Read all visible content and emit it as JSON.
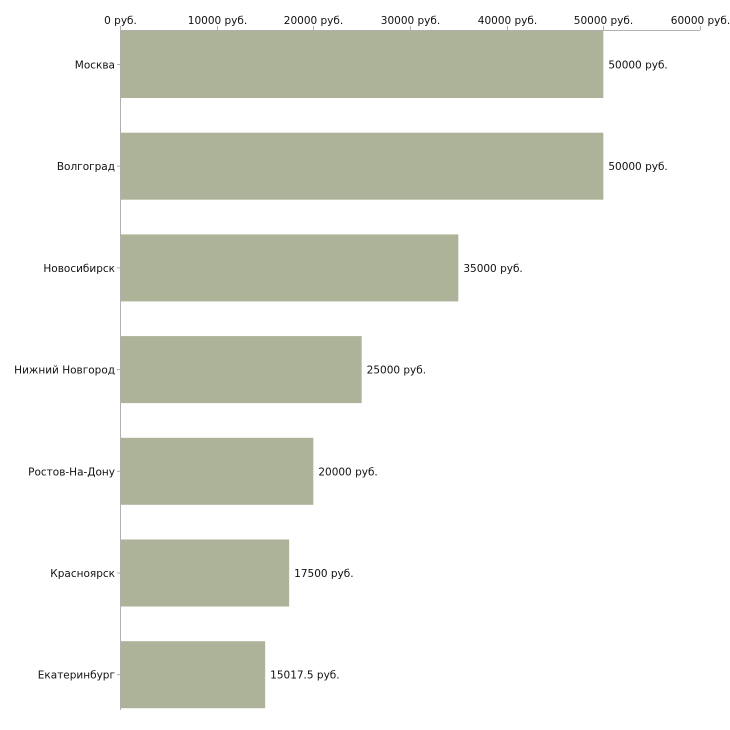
{
  "chart_data": {
    "type": "bar",
    "orientation": "horizontal",
    "title": "",
    "xlabel": "",
    "ylabel": "",
    "xlim": [
      0,
      60000
    ],
    "x_ticks": [
      0,
      10000,
      20000,
      30000,
      40000,
      50000,
      60000
    ],
    "x_tick_labels": [
      "0 руб.",
      "10000 руб.",
      "20000 руб.",
      "30000 руб.",
      "40000 руб.",
      "50000 руб.",
      "60000 руб."
    ],
    "x_axis_position": "top",
    "grid": false,
    "legend": "none",
    "bar_color": "#adb398",
    "categories": [
      "Москва",
      "Волгоград",
      "Новосибирск",
      "Нижний Новгород",
      "Ростов-На-Дону",
      "Красноярск",
      "Екатеринбург"
    ],
    "values": [
      50000,
      50000,
      35000,
      25000,
      20000,
      17500,
      15017.5
    ],
    "value_labels": [
      "50000 руб.",
      "50000 руб.",
      "35000 руб.",
      "25000 руб.",
      "20000 руб.",
      "17500 руб.",
      "15017.5 руб."
    ]
  }
}
